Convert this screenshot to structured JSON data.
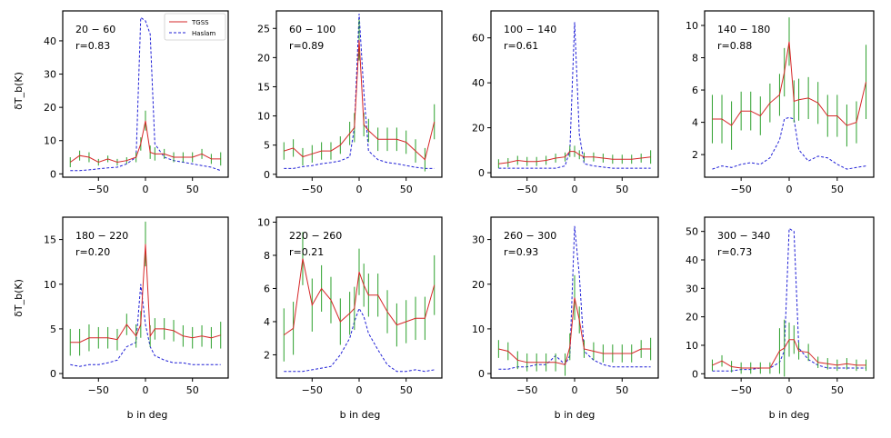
{
  "chart_data": {
    "type": "line",
    "shared_xlabel": "b in deg",
    "shared_ylabel": "δT_b(K)",
    "legend": {
      "location": "top-right of first panel",
      "entries": [
        {
          "name": "TGSS",
          "color": "#d62728",
          "style": "solid"
        },
        {
          "name": "Haslam",
          "color": "#1f1fd6",
          "style": "dashed"
        }
      ]
    },
    "colors": {
      "tgss": "#d62728",
      "haslam": "#1f1fd6",
      "errorbar": "#2ca02c"
    },
    "x": [
      -80,
      -70,
      -60,
      -50,
      -40,
      -30,
      -20,
      -10,
      -5,
      0,
      5,
      10,
      20,
      30,
      40,
      50,
      60,
      70,
      80
    ],
    "panels": [
      {
        "label": "20 − 60",
        "r": "r=0.83",
        "ylim": [
          -1,
          49
        ],
        "yticks": [
          0,
          10,
          20,
          30,
          40
        ],
        "xticks": [
          -50,
          0,
          50
        ],
        "tgss": [
          3.5,
          5.5,
          5,
          3.5,
          4.5,
          3.5,
          4,
          5,
          9,
          16,
          6.5,
          6,
          6,
          5,
          5,
          5,
          6,
          4.5,
          4.5
        ],
        "err": [
          1.5,
          1.5,
          1.5,
          1,
          1,
          1,
          1,
          1.5,
          2,
          3,
          2,
          2,
          1.5,
          1.5,
          1.5,
          1.5,
          1.5,
          1.5,
          2
        ],
        "haslam": [
          1,
          1,
          1.2,
          1.5,
          1.8,
          2,
          3,
          5,
          47,
          46,
          42,
          9,
          5,
          4,
          3.5,
          3,
          2.5,
          2,
          1
        ]
      },
      {
        "label": "60 − 100",
        "r": "r=0.89",
        "ylim": [
          -0.5,
          28
        ],
        "yticks": [
          0,
          5,
          10,
          15,
          20,
          25
        ],
        "xticks": [
          -50,
          0,
          50
        ],
        "tgss": [
          4,
          4.5,
          3,
          3.5,
          4,
          4,
          5,
          7,
          8,
          23,
          8.5,
          7.5,
          6,
          6,
          6,
          5.5,
          4,
          2.5,
          9
        ],
        "err": [
          1.5,
          1.5,
          1.5,
          1.5,
          1.5,
          1.5,
          1.5,
          2,
          2.5,
          3.5,
          2,
          2,
          2,
          2,
          2,
          2,
          2,
          2,
          3
        ],
        "haslam": [
          1,
          1,
          1.3,
          1.5,
          1.8,
          2,
          2.3,
          3,
          8,
          27.5,
          14,
          4,
          2.5,
          2,
          1.8,
          1.5,
          1.2,
          1,
          1
        ]
      },
      {
        "label": "100 − 140",
        "r": "r=0.61",
        "ylim": [
          -2,
          72
        ],
        "yticks": [
          0,
          20,
          40,
          60
        ],
        "xticks": [
          -50,
          0,
          50
        ],
        "tgss": [
          4,
          4.5,
          5.5,
          5,
          5,
          5.5,
          6.5,
          7,
          9.5,
          9.5,
          8,
          7,
          7,
          6.5,
          6,
          6,
          6,
          6.5,
          7
        ],
        "err": [
          2,
          2,
          2,
          2,
          2,
          2,
          2,
          2,
          2.5,
          2.5,
          2,
          2,
          2,
          2,
          2,
          2,
          2,
          2,
          3
        ],
        "haslam": [
          2,
          2,
          2,
          2,
          2,
          2,
          2,
          3,
          10,
          67,
          17,
          4,
          3,
          2.5,
          2,
          2,
          2,
          2,
          2
        ]
      },
      {
        "label": "140 − 180",
        "r": "r=0.88",
        "ylim": [
          0.6,
          10.9
        ],
        "yticks": [
          2,
          4,
          6,
          8,
          10
        ],
        "xticks": [
          -50,
          0,
          50
        ],
        "tgss": [
          4.2,
          4.2,
          3.8,
          4.7,
          4.7,
          4.4,
          5.2,
          5.7,
          7.1,
          9,
          5.3,
          5.4,
          5.5,
          5.2,
          4.4,
          4.4,
          3.8,
          4.0,
          6.5
        ],
        "err": [
          1.5,
          1.5,
          1.5,
          1.2,
          1.2,
          1.2,
          1.2,
          1.3,
          1.5,
          1.5,
          1.3,
          1.3,
          1.3,
          1.3,
          1.3,
          1.3,
          1.3,
          1.3,
          2.3
        ],
        "haslam": [
          1.1,
          1.3,
          1.2,
          1.4,
          1.5,
          1.4,
          1.8,
          2.9,
          4.2,
          4.3,
          4.2,
          2.3,
          1.6,
          1.9,
          1.8,
          1.4,
          1.1,
          1.2,
          1.3
        ]
      },
      {
        "label": "180 − 220",
        "r": "r=0.20",
        "ylim": [
          -0.5,
          17.5
        ],
        "yticks": [
          0,
          5,
          10,
          15
        ],
        "xticks": [
          -50,
          0,
          50
        ],
        "tgss": [
          3.5,
          3.5,
          4,
          4,
          4,
          3.8,
          5.5,
          4.2,
          5.5,
          14.5,
          4.2,
          5,
          5,
          4.8,
          4.2,
          4,
          4.2,
          4,
          4.3
        ],
        "err": [
          1.5,
          1.5,
          1.5,
          1.2,
          1.2,
          1.2,
          1.2,
          1.3,
          1.5,
          2.5,
          1.2,
          1.2,
          1.2,
          1.2,
          1.2,
          1.2,
          1.2,
          1.2,
          1.5
        ],
        "haslam": [
          1,
          0.8,
          1,
          1,
          1.2,
          1.5,
          3,
          3.5,
          10,
          5.5,
          3,
          2,
          1.5,
          1.2,
          1.2,
          1,
          1,
          1,
          1
        ]
      },
      {
        "label": "220 − 260",
        "r": "r=0.21",
        "ylim": [
          0.6,
          10.3
        ],
        "yticks": [
          2,
          4,
          6,
          8,
          10
        ],
        "xticks": [
          -50,
          0,
          50
        ],
        "tgss": [
          3.2,
          3.6,
          7.8,
          5.0,
          6.0,
          5.3,
          4.0,
          4.5,
          4.8,
          7.0,
          6.2,
          5.6,
          5.6,
          4.6,
          3.8,
          4.0,
          4.2,
          4.2,
          6.2
        ],
        "err": [
          1.6,
          1.6,
          1.6,
          1.6,
          1.4,
          1.4,
          1.4,
          1.3,
          1.3,
          1.4,
          1.3,
          1.3,
          1.3,
          1.3,
          1.3,
          1.3,
          1.3,
          1.3,
          1.8
        ],
        "haslam": [
          1,
          1,
          1,
          1.1,
          1.2,
          1.3,
          2.0,
          3.0,
          4.0,
          4.8,
          4.3,
          3.3,
          2.3,
          1.4,
          1.0,
          1.0,
          1.1,
          1.0,
          1.1
        ]
      },
      {
        "label": "260 − 300",
        "r": "r=0.93",
        "ylim": [
          -1,
          35
        ],
        "yticks": [
          0,
          10,
          20,
          30
        ],
        "xticks": [
          -50,
          0,
          50
        ],
        "tgss": [
          5.5,
          5,
          3,
          2.5,
          2.5,
          2.5,
          2.5,
          2,
          6,
          17,
          12,
          5.5,
          5,
          4.5,
          4.5,
          4.5,
          4.5,
          5.5,
          5.5
        ],
        "err": [
          2,
          2,
          2,
          2,
          2,
          2,
          2,
          2.5,
          3,
          5,
          3,
          2,
          2,
          2,
          2,
          2,
          2,
          2,
          2.5
        ],
        "haslam": [
          1,
          1,
          1.5,
          1.5,
          2,
          2,
          4,
          2,
          4,
          33,
          22,
          5,
          3,
          2,
          1.5,
          1.5,
          1.5,
          1.5,
          1.5
        ]
      },
      {
        "label": "300 − 340",
        "r": "r=0.73",
        "ylim": [
          -1.5,
          55
        ],
        "yticks": [
          0,
          10,
          20,
          30,
          40,
          50
        ],
        "xticks": [
          -50,
          0,
          50
        ],
        "tgss": [
          3,
          4.5,
          2.5,
          2,
          2,
          2,
          2,
          8,
          9,
          12,
          12,
          8,
          7.5,
          4,
          3.5,
          3,
          3.5,
          3,
          3
        ],
        "err": [
          2,
          2,
          2,
          2,
          2,
          2,
          2,
          8,
          10,
          6,
          5,
          3,
          3,
          2,
          2,
          2,
          2,
          2,
          2
        ],
        "haslam": [
          1,
          1,
          1,
          1.5,
          1.5,
          2,
          2,
          4,
          8,
          51,
          50,
          9,
          5,
          3,
          2,
          2,
          2,
          2,
          2
        ]
      }
    ]
  }
}
